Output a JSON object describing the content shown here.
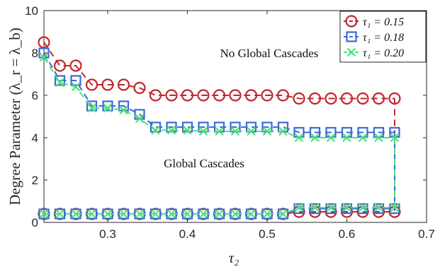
{
  "chart_data": {
    "type": "line",
    "xlabel": "τ₂",
    "ylabel": "Degree Parameter (λ_r = λ_b)",
    "xlim": [
      0.22,
      0.7
    ],
    "ylim": [
      0,
      10
    ],
    "xticks": [
      0.3,
      0.4,
      0.5,
      0.6,
      0.7
    ],
    "yticks": [
      0,
      2,
      4,
      6,
      8,
      10
    ],
    "xtick_labels": [
      "0.3",
      "0.4",
      "0.5",
      "0.6",
      "0.7"
    ],
    "ytick_labels": [
      "0",
      "2",
      "4",
      "6",
      "8",
      "10"
    ],
    "grid": false,
    "legend_position": "top-right",
    "annotations": [
      "No Global Cascades",
      "Global Cascades"
    ],
    "x": [
      0.22,
      0.24,
      0.26,
      0.28,
      0.3,
      0.32,
      0.34,
      0.36,
      0.38,
      0.4,
      0.42,
      0.44,
      0.46,
      0.48,
      0.5,
      0.52,
      0.54,
      0.56,
      0.58,
      0.6,
      0.62,
      0.64,
      0.66
    ],
    "series": [
      {
        "name": "τ₁ = 0.15",
        "marker": "circle",
        "color": "#c1272d",
        "upper": [
          8.5,
          7.4,
          7.4,
          6.5,
          6.5,
          6.5,
          6.35,
          6.0,
          6.0,
          6.0,
          6.0,
          6.0,
          6.0,
          6.0,
          6.0,
          6.0,
          5.85,
          5.85,
          5.85,
          5.85,
          5.85,
          5.85,
          5.85
        ],
        "lower": [
          0.4,
          0.4,
          0.4,
          0.4,
          0.4,
          0.4,
          0.4,
          0.4,
          0.4,
          0.4,
          0.4,
          0.4,
          0.4,
          0.4,
          0.4,
          0.4,
          0.5,
          0.5,
          0.5,
          0.5,
          0.5,
          0.5,
          0.5
        ]
      },
      {
        "name": "τ₁ = 0.18",
        "marker": "square",
        "color": "#3a6bd6",
        "upper": [
          8.0,
          6.7,
          6.7,
          5.5,
          5.5,
          5.5,
          5.1,
          4.5,
          4.5,
          4.5,
          4.5,
          4.5,
          4.5,
          4.5,
          4.5,
          4.5,
          4.25,
          4.25,
          4.25,
          4.25,
          4.25,
          4.25,
          4.25
        ],
        "lower": [
          0.4,
          0.4,
          0.4,
          0.4,
          0.4,
          0.4,
          0.4,
          0.4,
          0.4,
          0.4,
          0.4,
          0.4,
          0.4,
          0.4,
          0.4,
          0.4,
          0.65,
          0.65,
          0.65,
          0.65,
          0.65,
          0.65,
          0.65
        ]
      },
      {
        "name": "τ₁ = 0.20",
        "marker": "x",
        "color": "#4ee07a",
        "upper": [
          7.8,
          6.6,
          6.4,
          5.4,
          5.4,
          5.3,
          4.9,
          4.35,
          4.35,
          4.35,
          4.3,
          4.3,
          4.3,
          4.3,
          4.3,
          4.3,
          4.0,
          4.0,
          4.0,
          4.0,
          4.0,
          4.0,
          4.0
        ],
        "lower": [
          0.4,
          0.4,
          0.4,
          0.4,
          0.4,
          0.4,
          0.4,
          0.4,
          0.4,
          0.4,
          0.4,
          0.4,
          0.4,
          0.4,
          0.4,
          0.4,
          0.7,
          0.7,
          0.7,
          0.7,
          0.7,
          0.7,
          0.7
        ]
      }
    ]
  }
}
